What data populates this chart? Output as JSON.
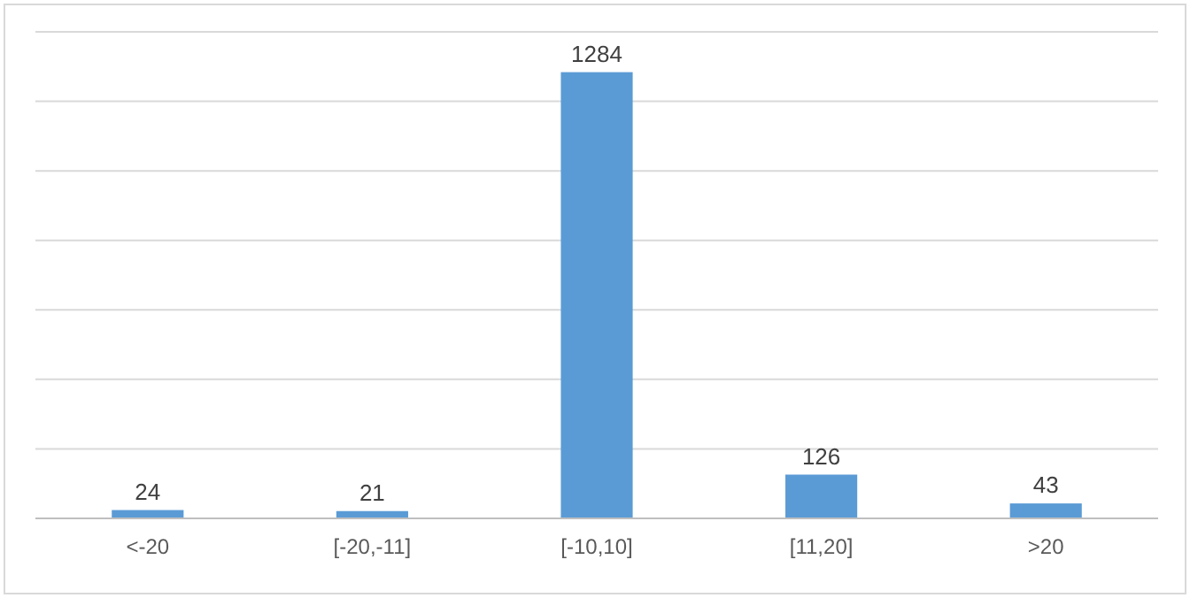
{
  "chart_data": {
    "type": "bar",
    "categories": [
      "<-20",
      "[-20,-11]",
      "[-10,10]",
      "[11,20]",
      ">20"
    ],
    "values": [
      24,
      21,
      1284,
      126,
      43
    ],
    "color": "#5b9bd5",
    "data_labels": true,
    "ylim": [
      0,
      1400
    ],
    "yticks": [
      {
        "value": 0,
        "label": null
      },
      {
        "value": 200,
        "label": null
      },
      {
        "value": 400,
        "label": null
      },
      {
        "value": 600,
        "label": null
      },
      {
        "value": 800,
        "label": null
      },
      {
        "value": 1000,
        "label": null
      },
      {
        "value": 1200,
        "label": null
      },
      {
        "value": 1400,
        "label": null
      }
    ],
    "grid": "y",
    "tick_labels": "x"
  }
}
